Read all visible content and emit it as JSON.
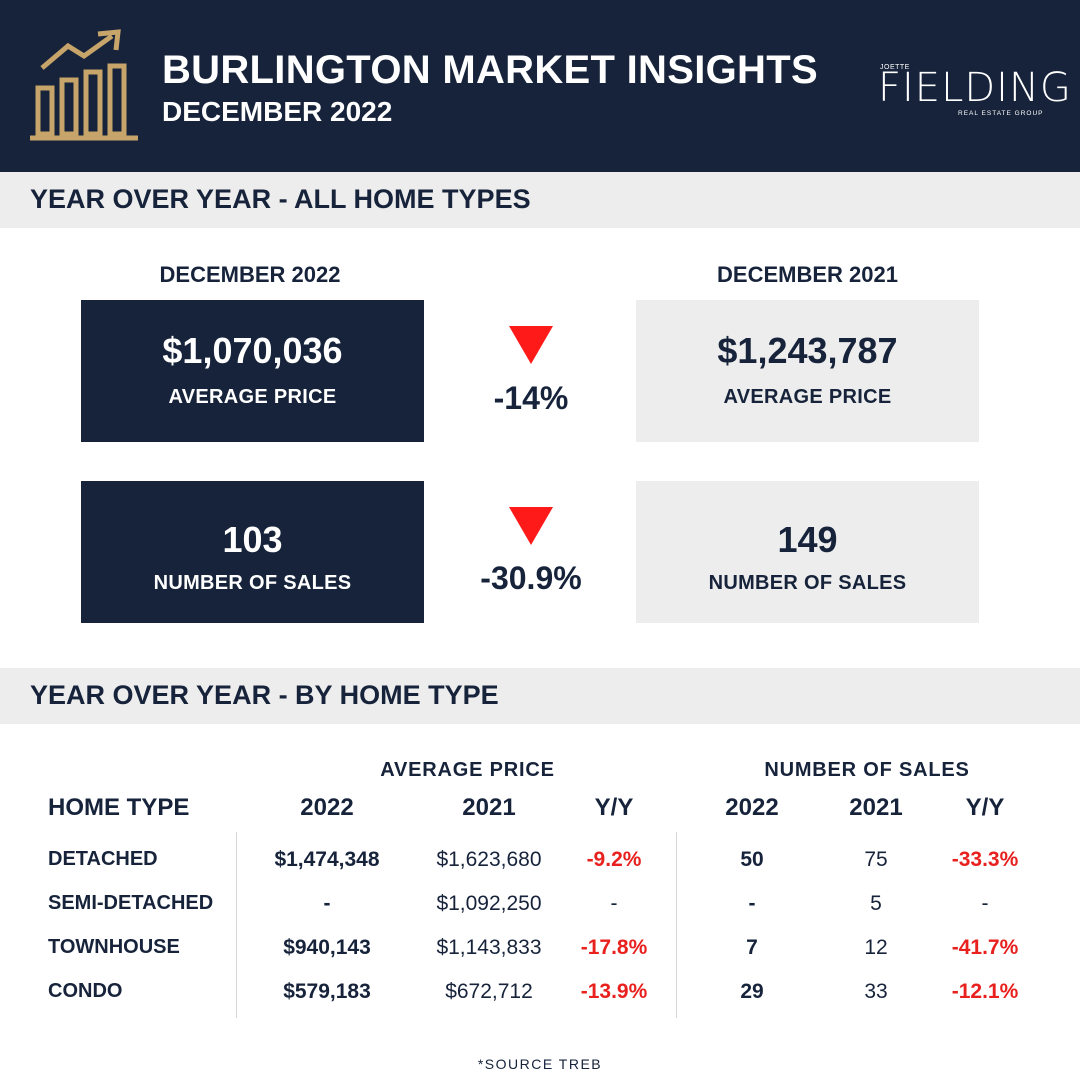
{
  "header": {
    "title": "BURLINGTON MARKET INSIGHTS",
    "subtitle": "DECEMBER 2022",
    "brand": {
      "top": "JOETTE",
      "main": "FIELDING",
      "sub": "REAL ESTATE GROUP"
    },
    "icon": "bar-chart-trend-icon",
    "accent_color": "#c6a46a"
  },
  "colors": {
    "navy": "#16233a",
    "light_gray": "#ededed",
    "negative": "#e8201e",
    "arrow": "#ff1a1a"
  },
  "yoy_all": {
    "section_title": "YEAR OVER YEAR - ALL HOME TYPES",
    "current_label": "DECEMBER 2022",
    "previous_label": "DECEMBER 2021",
    "avg_price": {
      "current": "$1,070,036",
      "previous": "$1,243,787",
      "label": "AVERAGE PRICE",
      "change": "-14%",
      "direction": "down"
    },
    "sales": {
      "current": "103",
      "previous": "149",
      "label": "NUMBER OF SALES",
      "change": "-30.9%",
      "direction": "down"
    }
  },
  "by_type": {
    "section_title": "YEAR OVER YEAR - BY HOME TYPE",
    "group_price": "AVERAGE PRICE",
    "group_sales": "NUMBER OF SALES",
    "headers": [
      "HOME TYPE",
      "2022",
      "2021",
      "Y/Y",
      "2022",
      "2021",
      "Y/Y"
    ],
    "rows": [
      {
        "type": "DETACHED",
        "price_2022": "$1,474,348",
        "price_2021": "$1,623,680",
        "price_yy": "-9.2%",
        "sales_2022": "50",
        "sales_2021": "75",
        "sales_yy": "-33.3%"
      },
      {
        "type": "SEMI-DETACHED",
        "price_2022": "-",
        "price_2021": "$1,092,250",
        "price_yy": "-",
        "sales_2022": "-",
        "sales_2021": "5",
        "sales_yy": "-"
      },
      {
        "type": "TOWNHOUSE",
        "price_2022": "$940,143",
        "price_2021": "$1,143,833",
        "price_yy": "-17.8%",
        "sales_2022": "7",
        "sales_2021": "12",
        "sales_yy": "-41.7%"
      },
      {
        "type": "CONDO",
        "price_2022": "$579,183",
        "price_2021": "$672,712",
        "price_yy": "-13.9%",
        "sales_2022": "29",
        "sales_2021": "33",
        "sales_yy": "-12.1%"
      }
    ]
  },
  "source": "*SOURCE TREB"
}
